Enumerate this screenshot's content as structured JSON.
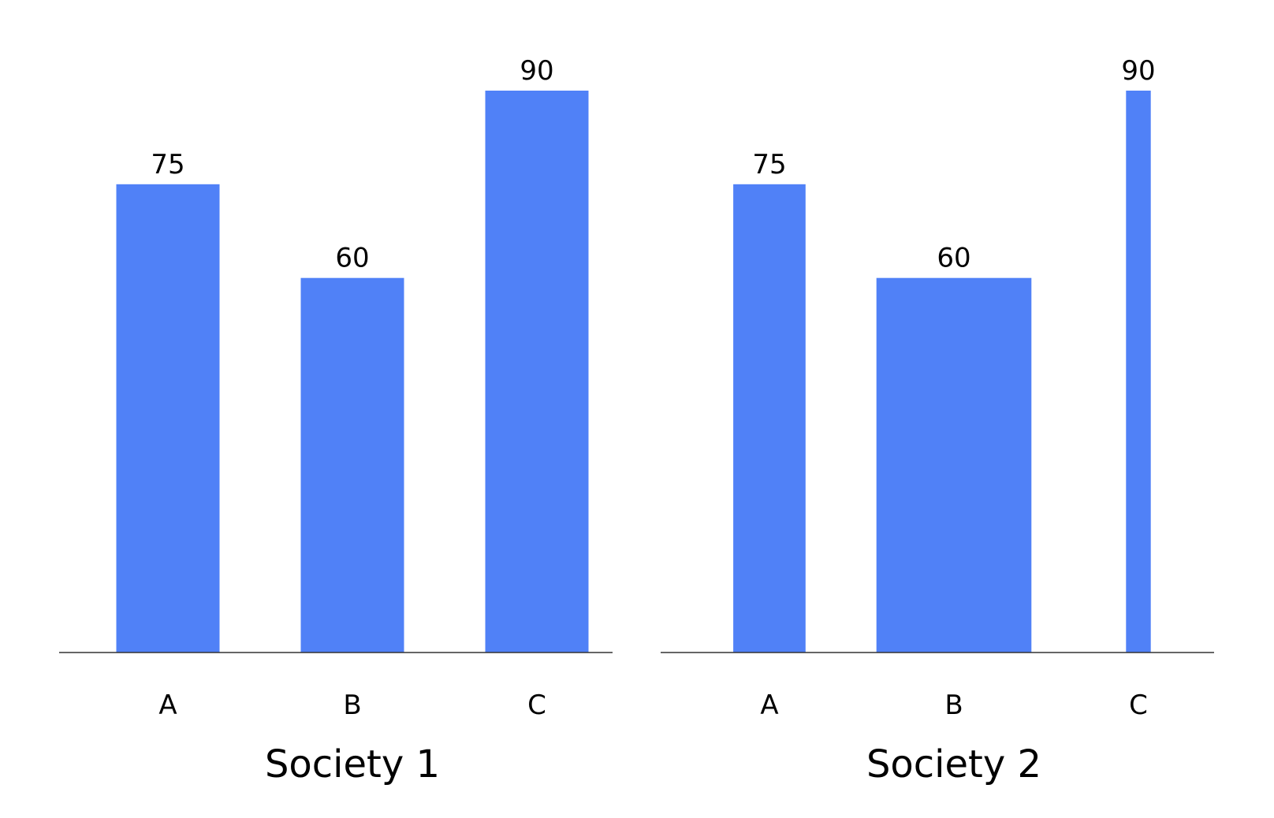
{
  "chart_data": [
    {
      "type": "bar",
      "title": "Society 1",
      "categories": [
        "A",
        "B",
        "C"
      ],
      "values": [
        75,
        60,
        90
      ],
      "bar_width_share": [
        0.5,
        0.5,
        0.5
      ],
      "ylim": [
        0,
        90
      ],
      "grid": false,
      "color": "#5081f7"
    },
    {
      "type": "bar",
      "title": "Society 2",
      "categories": [
        "A",
        "B",
        "C"
      ],
      "values": [
        75,
        60,
        90
      ],
      "bar_width_share": [
        0.35,
        0.75,
        0.12
      ],
      "ylim": [
        0,
        90
      ],
      "grid": false,
      "color": "#5081f7"
    }
  ]
}
